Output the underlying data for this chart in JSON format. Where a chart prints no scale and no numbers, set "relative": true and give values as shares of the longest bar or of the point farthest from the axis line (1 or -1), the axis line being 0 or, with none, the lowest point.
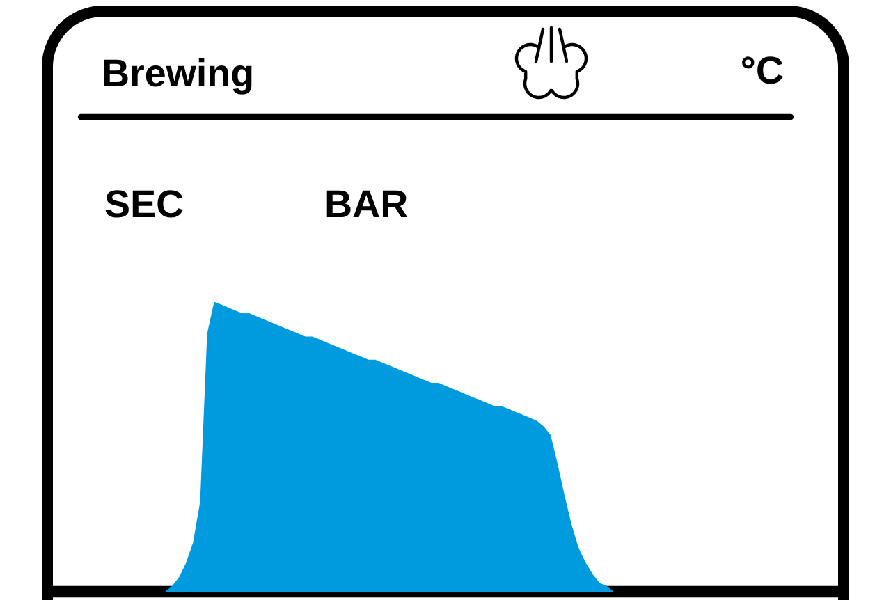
{
  "chart_data": {
    "type": "area",
    "title": "Brewing",
    "relative": true,
    "categories": [
      null,
      null,
      null,
      null,
      null,
      null,
      null,
      null,
      null,
      null,
      null,
      null,
      null,
      null,
      null,
      null,
      null,
      null,
      null,
      null,
      null,
      null,
      null,
      null,
      null,
      null,
      null,
      null,
      null,
      null,
      null,
      null,
      null,
      null,
      null,
      null,
      null,
      null,
      null,
      null,
      null,
      null,
      null,
      null,
      null,
      null,
      null,
      null,
      null,
      null,
      null,
      null,
      null,
      null,
      null,
      null,
      null,
      null,
      null,
      null,
      null,
      null,
      null,
      null,
      null,
      null,
      null,
      null,
      null,
      null,
      null,
      null,
      null,
      null,
      null,
      null,
      null,
      null,
      null,
      null,
      null,
      null,
      null,
      null,
      null,
      null,
      null,
      null,
      null,
      null,
      null,
      null,
      null,
      null,
      null,
      null,
      null,
      null,
      null,
      null,
      null,
      null,
      null,
      null,
      null,
      null,
      null,
      null,
      null,
      null,
      null,
      null,
      null
    ],
    "values": [
      0,
      0,
      0,
      0,
      0,
      0,
      0,
      0,
      0,
      0,
      0,
      0,
      0,
      0,
      0,
      0,
      0,
      0.02,
      0.05,
      0.1,
      0.17,
      0.31,
      0.89,
      1.0,
      0.99,
      0.98,
      0.97,
      0.96,
      0.96,
      0.95,
      0.94,
      0.93,
      0.92,
      0.91,
      0.9,
      0.89,
      0.88,
      0.88,
      0.87,
      0.86,
      0.85,
      0.84,
      0.83,
      0.82,
      0.81,
      0.8,
      0.8,
      0.79,
      0.78,
      0.77,
      0.76,
      0.75,
      0.74,
      0.73,
      0.72,
      0.72,
      0.71,
      0.7,
      0.69,
      0.68,
      0.67,
      0.66,
      0.65,
      0.64,
      0.64,
      0.63,
      0.62,
      0.61,
      0.6,
      0.59,
      0.57,
      0.54,
      0.44,
      0.33,
      0.23,
      0.15,
      0.1,
      0.06,
      0.03,
      0.02,
      0,
      0,
      0,
      0,
      0,
      0,
      0,
      0,
      0,
      0,
      0,
      0,
      0,
      0,
      0,
      0,
      0,
      0,
      0,
      0,
      0,
      0,
      0,
      0,
      0,
      0,
      0,
      0,
      0,
      0,
      0,
      0,
      0
    ],
    "color": "#009bdf",
    "annotations": [
      "°C",
      "SEC",
      "BAR"
    ]
  }
}
